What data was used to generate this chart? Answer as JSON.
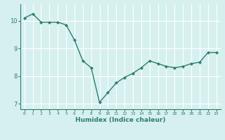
{
  "x": [
    0,
    1,
    2,
    3,
    4,
    5,
    6,
    7,
    8,
    9,
    10,
    11,
    12,
    13,
    14,
    15,
    16,
    17,
    18,
    19,
    20,
    21,
    22,
    23
  ],
  "y": [
    10.1,
    10.25,
    9.95,
    9.95,
    9.95,
    9.85,
    9.3,
    8.55,
    8.3,
    7.05,
    7.4,
    7.75,
    7.95,
    8.1,
    8.3,
    8.55,
    8.45,
    8.35,
    8.3,
    8.35,
    8.45,
    8.5,
    8.85,
    8.85
  ],
  "xlabel": "Humidex (Indice chaleur)",
  "ylim": [
    6.8,
    10.6
  ],
  "xlim": [
    -0.5,
    23.5
  ],
  "line_color": "#2e7d6e",
  "marker": "D",
  "marker_size": 2,
  "bg_color": "#d6f0f0",
  "grid_color": "#ffffff",
  "yticks": [
    7,
    8,
    9,
    10
  ],
  "xticks": [
    0,
    1,
    2,
    3,
    4,
    5,
    6,
    7,
    8,
    9,
    10,
    11,
    12,
    13,
    14,
    15,
    16,
    17,
    18,
    19,
    20,
    21,
    22,
    23
  ]
}
